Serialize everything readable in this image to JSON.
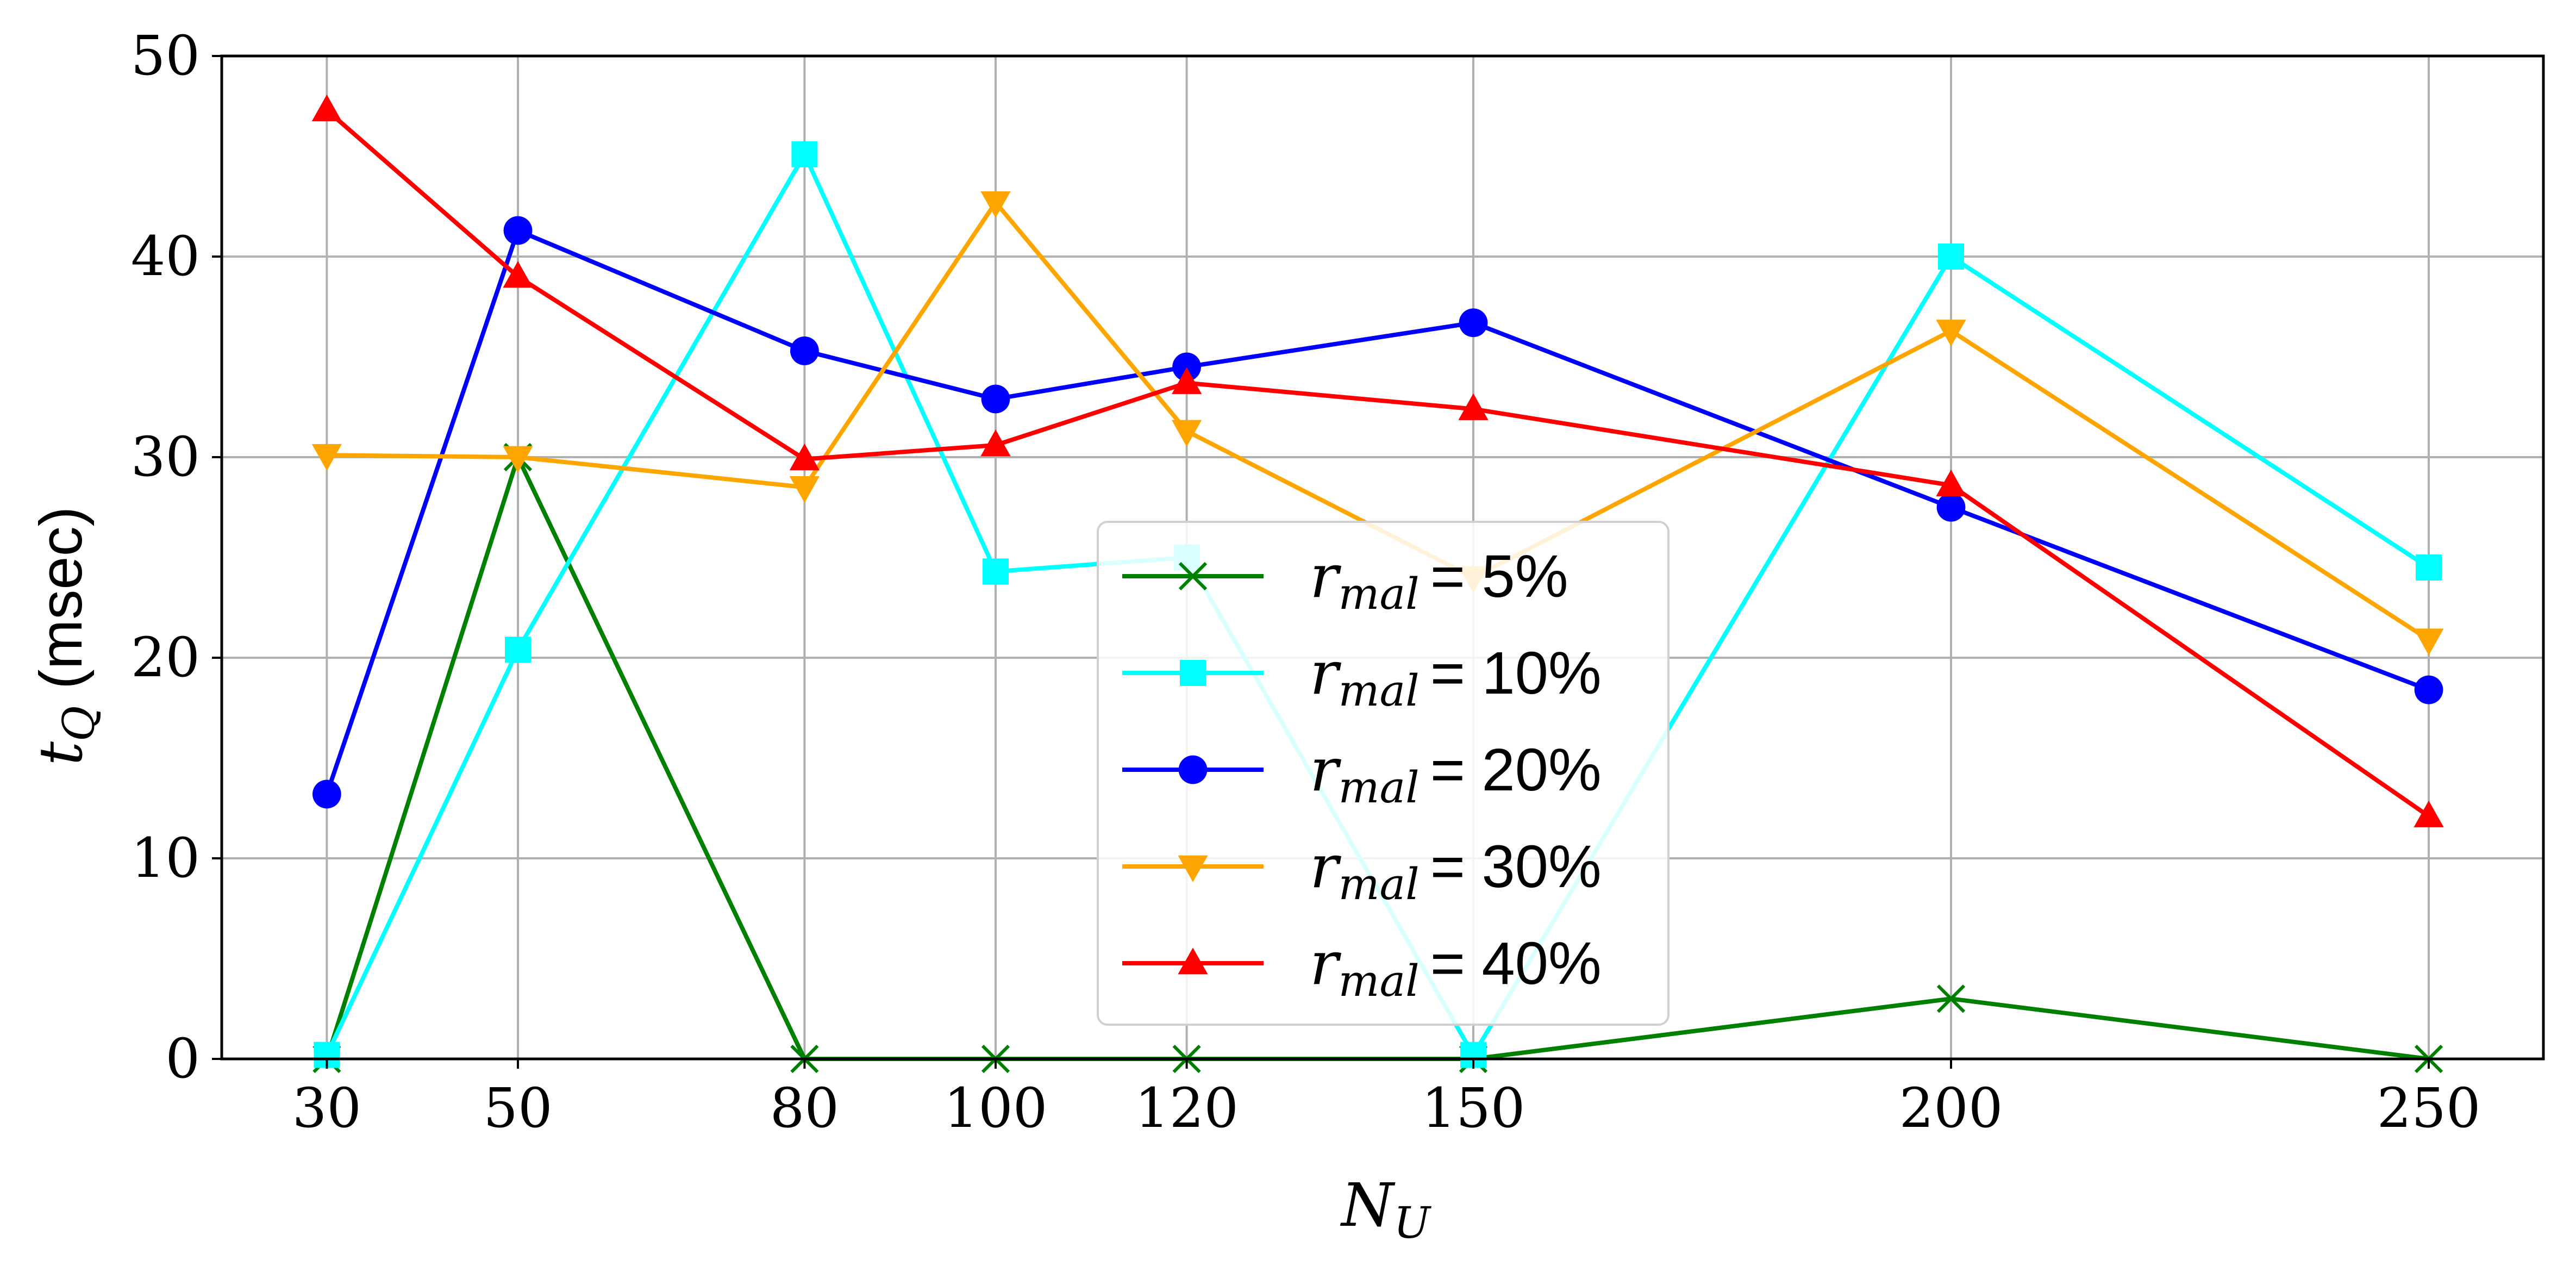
{
  "chart_data": {
    "type": "line",
    "x": [
      30,
      50,
      80,
      100,
      120,
      150,
      200,
      250
    ],
    "xticks": [
      "30",
      "50",
      "80",
      "100",
      "120",
      "150",
      "200",
      "250"
    ],
    "yticks": [
      "0",
      "10",
      "20",
      "30",
      "40",
      "50"
    ],
    "ylim": [
      0,
      50
    ],
    "xlim": [
      19,
      262
    ],
    "xlabel_symbol": "N",
    "xlabel_sub": "U",
    "ylabel_symbol": "t",
    "ylabel_sub": "Q",
    "ylabel_text": " (msec)",
    "grid": true,
    "legend_position": "lower-center",
    "series": [
      {
        "symbol": "r",
        "sub": "mal",
        "name": "= 5%",
        "color": "#008000",
        "marker": "x",
        "values": [
          0,
          30,
          0,
          0,
          0,
          0,
          3,
          0
        ]
      },
      {
        "symbol": "r",
        "sub": "mal",
        "name": "= 10%",
        "color": "#00ffff",
        "marker": "square",
        "values": [
          0.2,
          20.4,
          45.1,
          24.3,
          25.0,
          0.2,
          40.0,
          24.5
        ]
      },
      {
        "symbol": "r",
        "sub": "mal",
        "name": "= 20%",
        "color": "#0000ff",
        "marker": "circle",
        "values": [
          13.2,
          41.3,
          35.3,
          32.9,
          34.5,
          36.7,
          27.5,
          18.4
        ]
      },
      {
        "symbol": "r",
        "sub": "mal",
        "name": "= 30%",
        "color": "#ffa500",
        "marker": "triangle-down",
        "values": [
          30.1,
          30.0,
          28.5,
          42.7,
          31.3,
          24.0,
          36.3,
          20.9
        ]
      },
      {
        "symbol": "r",
        "sub": "mal",
        "name": "= 40%",
        "color": "#ff0000",
        "marker": "triangle-up",
        "values": [
          47.3,
          39.0,
          29.9,
          30.6,
          33.7,
          32.4,
          28.6,
          12.1
        ]
      }
    ]
  }
}
